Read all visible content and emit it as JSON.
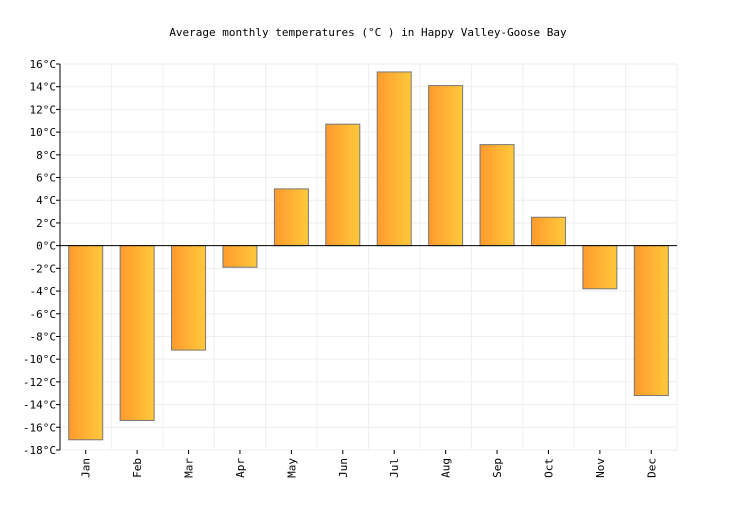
{
  "chart_data": {
    "type": "bar",
    "title": "Average monthly temperatures (°C ) in Happy Valley-Goose Bay",
    "xlabel": "",
    "ylabel": "",
    "categories": [
      "Jan",
      "Feb",
      "Mar",
      "Apr",
      "May",
      "Jun",
      "Jul",
      "Aug",
      "Sep",
      "Oct",
      "Nov",
      "Dec"
    ],
    "values": [
      -17.1,
      -15.4,
      -9.2,
      -1.9,
      5.0,
      10.7,
      15.3,
      14.1,
      8.9,
      2.5,
      -3.8,
      -13.2
    ],
    "ylim": [
      -18,
      16
    ],
    "yticks": [
      16,
      14,
      12,
      10,
      8,
      6,
      4,
      2,
      0,
      -2,
      -4,
      -6,
      -8,
      -10,
      -12,
      -14,
      -16,
      -18
    ],
    "ytick_suffix": "°C",
    "grid": true,
    "legend": "none",
    "colors": {
      "bar_start": "#ff9a2e",
      "bar_end": "#ffc93a",
      "bar_stroke": "#777777",
      "grid": "#eeeeee"
    }
  }
}
